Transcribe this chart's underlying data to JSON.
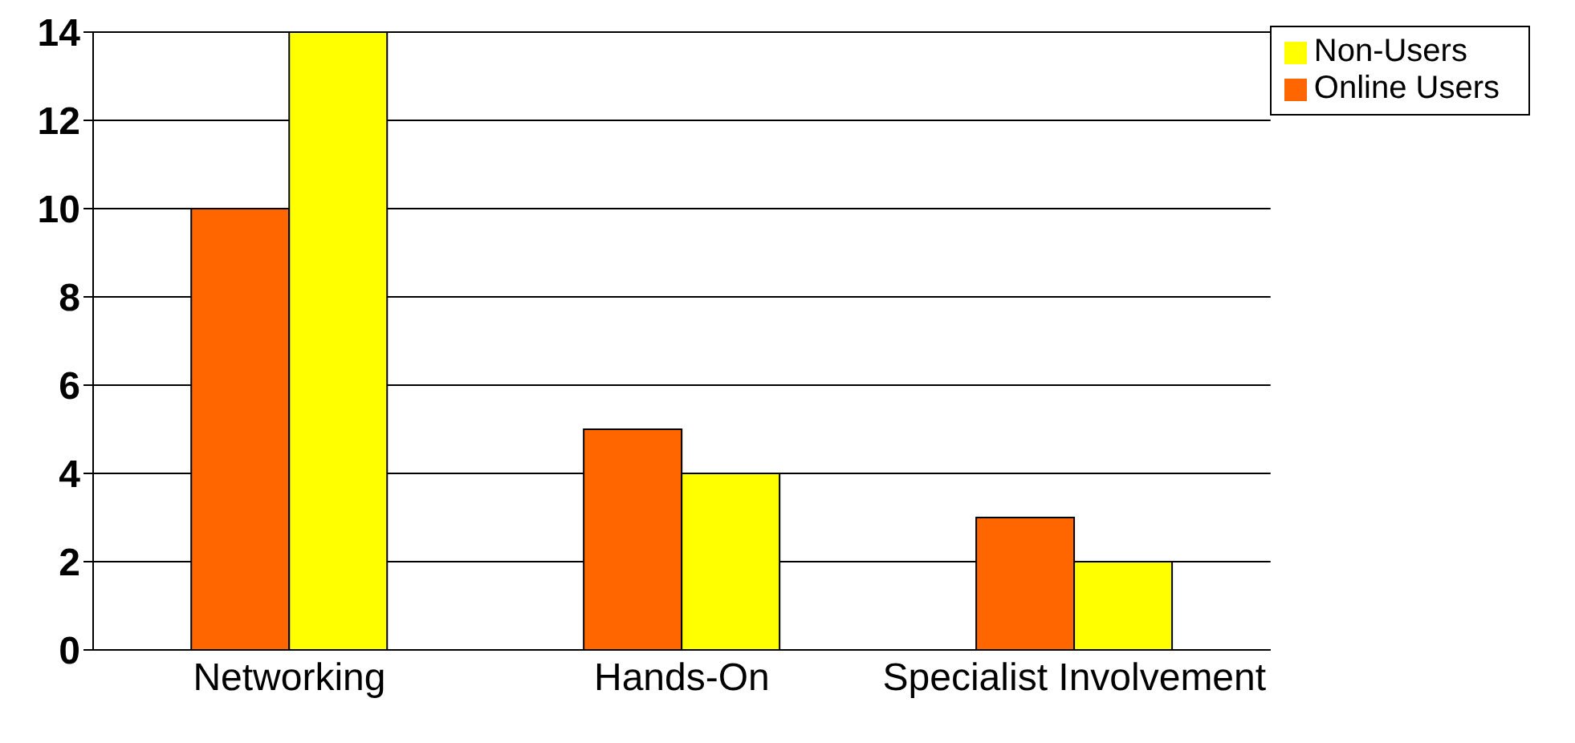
{
  "chart_data": {
    "type": "bar",
    "categories": [
      "Networking",
      "Hands-On",
      "Specialist Involvement"
    ],
    "series": [
      {
        "name": "Online Users",
        "color": "#ff6600",
        "values": [
          10,
          5,
          3
        ]
      },
      {
        "name": "Non-Users",
        "color": "#ffff00",
        "values": [
          14,
          4,
          2
        ]
      }
    ],
    "ylim": [
      0,
      14
    ],
    "yticks": [
      0,
      2,
      4,
      6,
      8,
      10,
      12,
      14
    ],
    "grid": "y",
    "legend": "top right"
  }
}
